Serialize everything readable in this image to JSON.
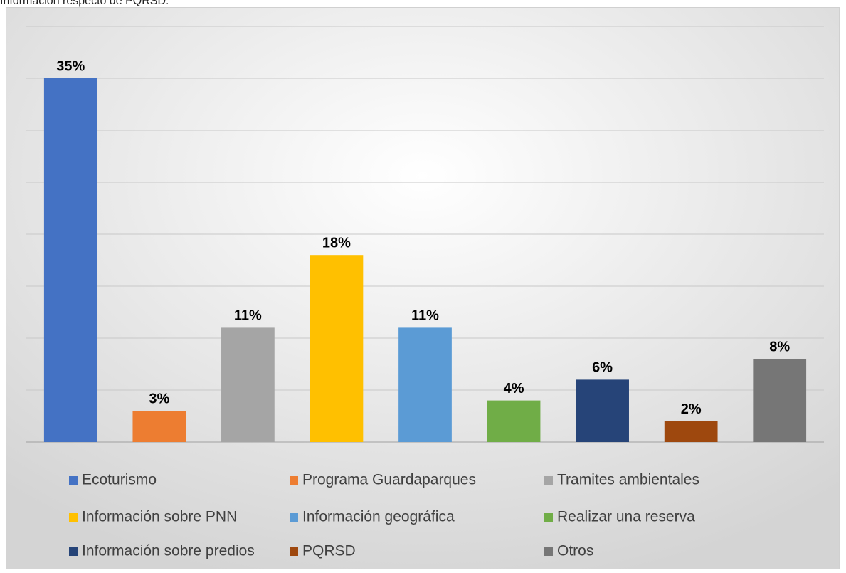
{
  "chart_data": {
    "type": "bar",
    "title": "Información respecto de PQRSD:",
    "categories": [
      "Ecoturismo",
      "Programa Guardaparques",
      "Tramites ambientales",
      "Información sobre PNN",
      "Información geográfica",
      "Realizar una reserva",
      "Información sobre predios",
      "PQRSD",
      "Otros"
    ],
    "values": [
      35,
      3,
      11,
      18,
      11,
      4,
      6,
      2,
      8
    ],
    "value_labels": [
      "35%",
      "3%",
      "11%",
      "18%",
      "11%",
      "4%",
      "6%",
      "2%",
      "8%"
    ],
    "colors": [
      "#4472c4",
      "#ed7d31",
      "#a5a5a5",
      "#ffc000",
      "#5b9bd5",
      "#70ad47",
      "#264478",
      "#9e480e",
      "#767676"
    ],
    "ylim": [
      0,
      40
    ],
    "yticks": [
      0,
      5,
      10,
      15,
      20,
      25,
      30,
      35,
      40
    ],
    "grid": true,
    "legend": "bottom"
  }
}
